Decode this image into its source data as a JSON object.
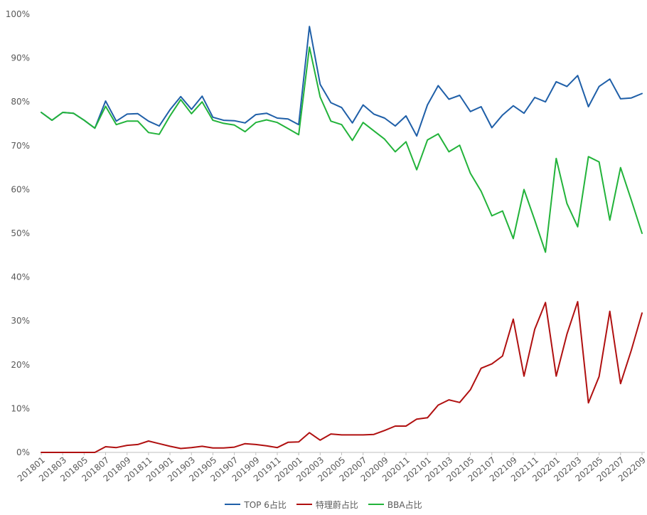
{
  "chart_data": {
    "type": "line",
    "title": "",
    "xlabel": "",
    "ylabel": "",
    "ylim": [
      0,
      100
    ],
    "yticks": [
      "0%",
      "10%",
      "20%",
      "30%",
      "40%",
      "50%",
      "60%",
      "70%",
      "80%",
      "90%",
      "100%"
    ],
    "grid": false,
    "legend_position": "bottom",
    "categories": [
      "201801",
      "201802",
      "201803",
      "201804",
      "201805",
      "201806",
      "201807",
      "201808",
      "201809",
      "201810",
      "201811",
      "201812",
      "201901",
      "201902",
      "201903",
      "201904",
      "201905",
      "201906",
      "201907",
      "201908",
      "201909",
      "201910",
      "201911",
      "201912",
      "202001",
      "202002",
      "202003",
      "202004",
      "202005",
      "202006",
      "202007",
      "202008",
      "202009",
      "202010",
      "202011",
      "202012",
      "202101",
      "202102",
      "202103",
      "202104",
      "202105",
      "202106",
      "202107",
      "202108",
      "202109",
      "202110",
      "202111",
      "202112",
      "202201",
      "202202",
      "202203",
      "202204",
      "202205",
      "202206",
      "202207",
      "202208",
      "202209"
    ],
    "xtick_labels": [
      "201801",
      "201803",
      "201805",
      "201807",
      "201809",
      "201811",
      "201901",
      "201903",
      "201905",
      "201907",
      "201909",
      "201911",
      "202001",
      "202003",
      "202005",
      "202007",
      "202009",
      "202011",
      "202101",
      "202103",
      "202105",
      "202107",
      "202109",
      "202111",
      "202201",
      "202203",
      "202205",
      "202207",
      "202209"
    ],
    "series": [
      {
        "name": "TOP 6占比",
        "color": "#1f5fa8",
        "values": [
          77.6,
          75.8,
          77.6,
          77.4,
          75.8,
          74.0,
          80.2,
          75.6,
          77.2,
          77.3,
          75.6,
          74.5,
          78.2,
          81.2,
          78.3,
          81.3,
          76.5,
          75.8,
          75.7,
          75.2,
          77.1,
          77.4,
          76.3,
          76.1,
          74.8,
          97.2,
          84.0,
          79.8,
          78.7,
          75.2,
          79.3,
          77.2,
          76.3,
          74.5,
          76.8,
          72.2,
          79.3,
          83.7,
          80.6,
          81.5,
          77.8,
          78.9,
          74.1,
          77.0,
          79.1,
          77.4,
          81.0,
          80.0,
          84.6,
          83.5,
          86.0,
          78.9,
          83.5,
          85.2,
          80.7,
          80.9,
          81.9
        ]
      },
      {
        "name": "特理蔚占比",
        "color": "#b01010",
        "values": [
          0.0,
          0.0,
          0.0,
          0.0,
          0.0,
          0.0,
          1.3,
          1.1,
          1.6,
          1.8,
          2.6,
          2.0,
          1.4,
          0.9,
          1.1,
          1.4,
          1.0,
          1.0,
          1.2,
          2.0,
          1.8,
          1.5,
          1.1,
          2.3,
          2.4,
          4.5,
          2.8,
          4.2,
          4.0,
          4.0,
          4.0,
          4.1,
          5.0,
          6.0,
          6.0,
          7.6,
          7.9,
          10.8,
          12.0,
          11.4,
          14.3,
          19.2,
          20.2,
          22.0,
          30.4,
          17.4,
          28.1,
          34.2,
          17.4,
          27.0,
          34.4,
          11.3,
          17.3,
          32.2,
          15.7,
          23.3,
          31.8
        ]
      },
      {
        "name": "BBA占比",
        "color": "#22b33a",
        "values": [
          77.6,
          75.8,
          77.6,
          77.4,
          75.8,
          74.0,
          79.0,
          74.8,
          75.6,
          75.6,
          73.0,
          72.6,
          76.8,
          80.5,
          77.3,
          80.0,
          75.8,
          75.1,
          74.7,
          73.2,
          75.3,
          75.9,
          75.3,
          73.9,
          72.5,
          92.5,
          81.1,
          75.6,
          74.8,
          71.2,
          75.3,
          73.4,
          71.5,
          68.6,
          70.9,
          64.5,
          71.3,
          72.7,
          68.6,
          70.1,
          63.7,
          59.6,
          54.0,
          55.1,
          48.8,
          60.0,
          53.0,
          45.7,
          67.1,
          56.8,
          51.5,
          67.5,
          66.3,
          53.0,
          65.0,
          57.6,
          50.0
        ]
      }
    ]
  }
}
